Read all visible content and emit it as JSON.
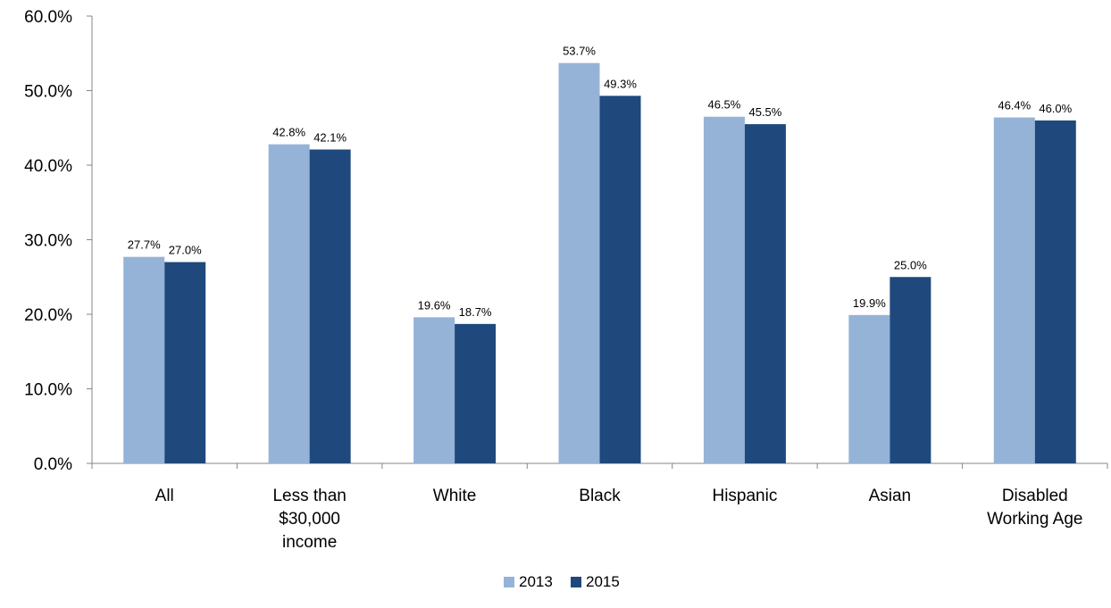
{
  "chart_data": {
    "type": "bar",
    "categories": [
      [
        "All"
      ],
      [
        "Less than",
        "$30,000",
        "income"
      ],
      [
        "White"
      ],
      [
        "Black"
      ],
      [
        "Hispanic"
      ],
      [
        "Asian"
      ],
      [
        "Disabled",
        "Working Age"
      ]
    ],
    "series": [
      {
        "name": "2013",
        "color": "#95b3d7",
        "values": [
          27.7,
          42.8,
          19.6,
          53.7,
          46.5,
          19.9,
          46.4
        ],
        "labels": [
          "27.7%",
          "42.8%",
          "19.6%",
          "53.7%",
          "46.5%",
          "19.9%",
          "46.4%"
        ]
      },
      {
        "name": "2015",
        "color": "#1f497d",
        "values": [
          27.0,
          42.1,
          18.7,
          49.3,
          45.5,
          25.0,
          46.0
        ],
        "labels": [
          "27.0%",
          "42.1%",
          "18.7%",
          "49.3%",
          "45.5%",
          "25.0%",
          "46.0%"
        ]
      }
    ],
    "ylim": [
      0,
      60
    ],
    "yticks": [
      0,
      10,
      20,
      30,
      40,
      50,
      60
    ],
    "ytick_labels": [
      "0.0%",
      "10.0%",
      "20.0%",
      "30.0%",
      "40.0%",
      "50.0%",
      "60.0%"
    ],
    "title": "",
    "xlabel": "",
    "ylabel": "",
    "grid": false,
    "legend_position": "bottom-center"
  }
}
